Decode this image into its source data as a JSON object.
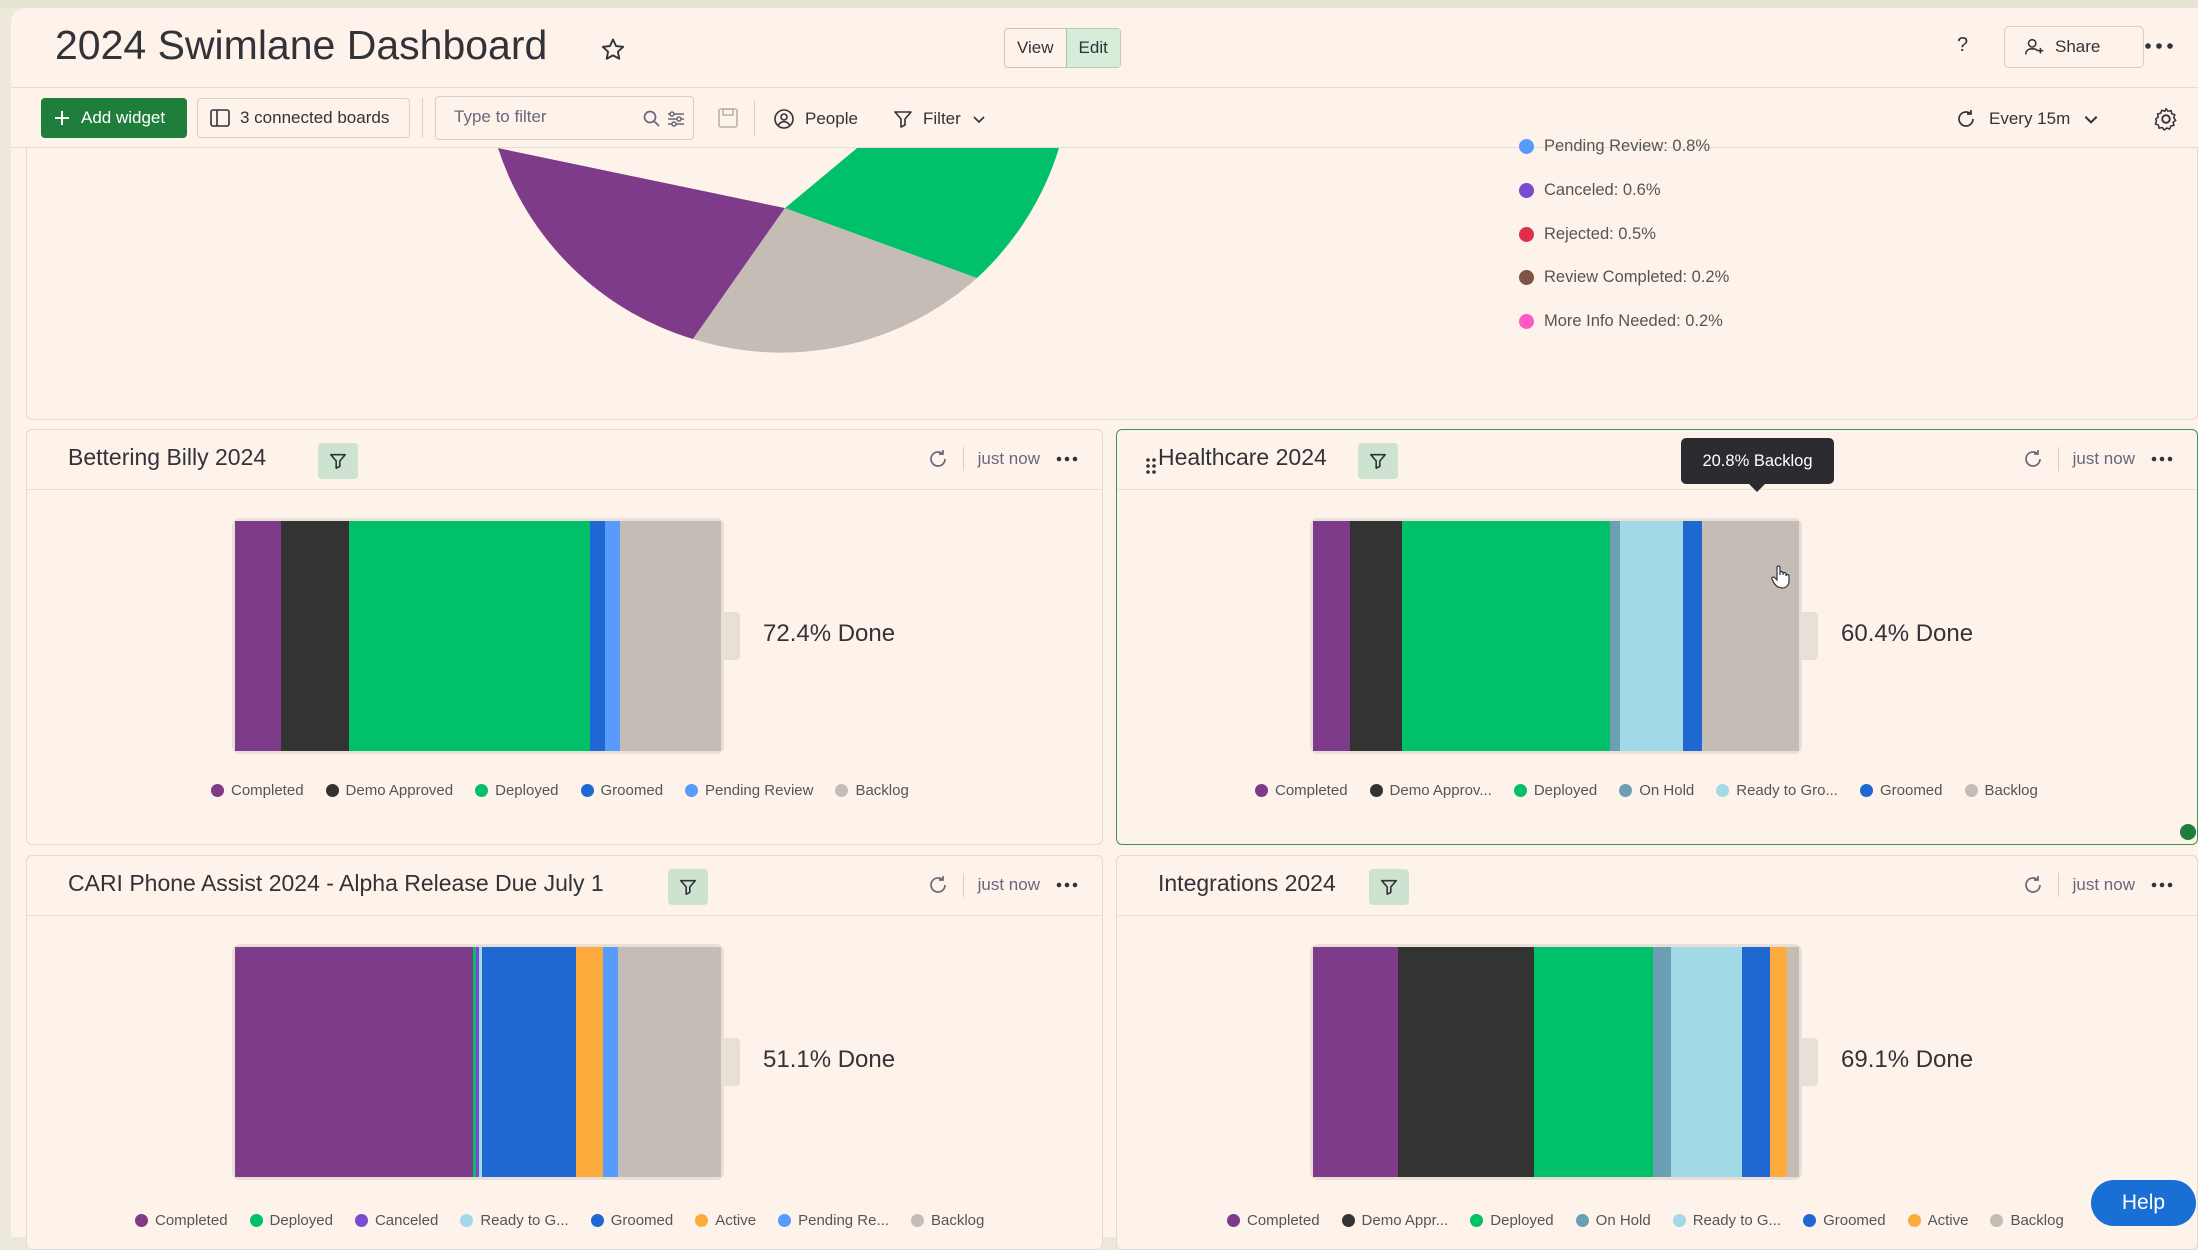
{
  "header": {
    "title": "2024 Swimlane Dashboard",
    "view_label": "View",
    "edit_label": "Edit",
    "help_mark": "?",
    "share_label": "Share"
  },
  "toolbar": {
    "add_widget_label": "Add widget",
    "connected_boards_label": "3 connected boards",
    "filter_placeholder": "Type to filter",
    "people_label": "People",
    "filter_label": "Filter",
    "refresh_label": "Every 15m"
  },
  "overview": {
    "legend": [
      {
        "label": "Pending Review: 0.8%",
        "color": "#579bfc"
      },
      {
        "label": "Canceled: 0.6%",
        "color": "#784bd1"
      },
      {
        "label": "Rejected: 0.5%",
        "color": "#df2f4a"
      },
      {
        "label": "Review Completed: 0.2%",
        "color": "#7f5347"
      },
      {
        "label": "More Info Needed: 0.2%",
        "color": "#ff5ac4"
      }
    ]
  },
  "widgets": [
    {
      "title": "Bettering Billy 2024",
      "updated": "just now",
      "done_label": "72.4% Done",
      "legend": [
        {
          "label": "Completed",
          "color": "#7e3b8a"
        },
        {
          "label": "Demo Approved",
          "color": "#333333"
        },
        {
          "label": "Deployed",
          "color": "#00c16a"
        },
        {
          "label": "Groomed",
          "color": "#1f67d1"
        },
        {
          "label": "Pending Review",
          "color": "#579bfc"
        },
        {
          "label": "Backlog",
          "color": "#c4bcb5"
        }
      ]
    },
    {
      "title": "Healthcare 2024",
      "updated": "just now",
      "done_label": "60.4% Done",
      "tooltip": "20.8% Backlog",
      "legend": [
        {
          "label": "Completed",
          "color": "#7e3b8a"
        },
        {
          "label": "Demo Approv...",
          "color": "#333333"
        },
        {
          "label": "Deployed",
          "color": "#00c16a"
        },
        {
          "label": "On Hold",
          "color": "#6c9fb3"
        },
        {
          "label": "Ready to Gro...",
          "color": "#a1d9e6"
        },
        {
          "label": "Groomed",
          "color": "#1f67d1"
        },
        {
          "label": "Backlog",
          "color": "#c4bcb5"
        }
      ]
    },
    {
      "title": "CARI Phone Assist 2024 - Alpha Release Due July 1",
      "updated": "just now",
      "done_label": "51.1% Done",
      "legend": [
        {
          "label": "Completed",
          "color": "#7e3b8a"
        },
        {
          "label": "Deployed",
          "color": "#00c16a"
        },
        {
          "label": "Canceled",
          "color": "#784bd1"
        },
        {
          "label": "Ready to G...",
          "color": "#a1d9e6"
        },
        {
          "label": "Groomed",
          "color": "#1f67d1"
        },
        {
          "label": "Active",
          "color": "#fdab3d"
        },
        {
          "label": "Pending Re...",
          "color": "#579bfc"
        },
        {
          "label": "Backlog",
          "color": "#c4bcb5"
        }
      ]
    },
    {
      "title": "Integrations 2024",
      "updated": "just now",
      "done_label": "69.1% Done",
      "legend": [
        {
          "label": "Completed",
          "color": "#7e3b8a"
        },
        {
          "label": "Demo Appr...",
          "color": "#333333"
        },
        {
          "label": "Deployed",
          "color": "#00c16a"
        },
        {
          "label": "On Hold",
          "color": "#6c9fb3"
        },
        {
          "label": "Ready to G...",
          "color": "#a1d9e6"
        },
        {
          "label": "Groomed",
          "color": "#1f67d1"
        },
        {
          "label": "Active",
          "color": "#fdab3d"
        },
        {
          "label": "Backlog",
          "color": "#c4bcb5"
        }
      ]
    }
  ],
  "help_label": "Help"
}
